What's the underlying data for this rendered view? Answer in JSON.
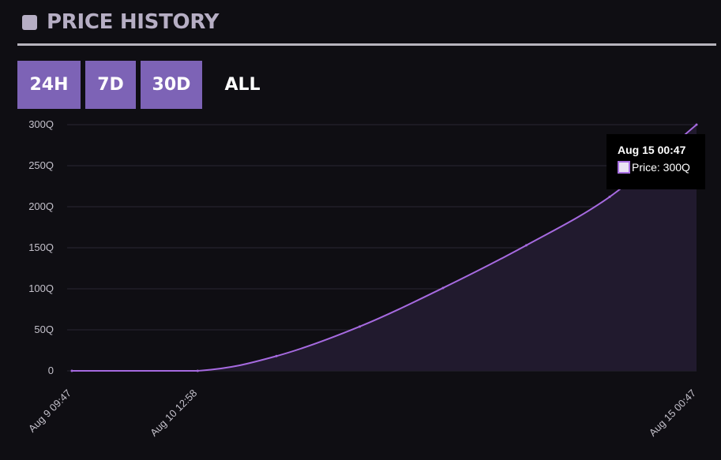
{
  "header": {
    "title": "PRICE HISTORY",
    "icon": "square-icon"
  },
  "range_tabs": [
    {
      "label": "24H",
      "active": false
    },
    {
      "label": "7D",
      "active": false
    },
    {
      "label": "30D",
      "active": false
    },
    {
      "label": "ALL",
      "active": true
    }
  ],
  "colors": {
    "background": "#0f0e13",
    "tab_background": "#7d63b6",
    "line": "#a66ae0",
    "area_fill": "#211a2e",
    "grid": "#2a2733"
  },
  "chart_data": {
    "type": "area",
    "y_ticks": [
      "0",
      "50Q",
      "100Q",
      "150Q",
      "200Q",
      "250Q",
      "300Q"
    ],
    "ylim": [
      0,
      300
    ],
    "y_unit": "Q",
    "x_ticks": [
      "Aug 9 09:47",
      "Aug 10 12:58",
      "Aug 15 00:47"
    ],
    "grid": true,
    "series": [
      {
        "name": "Price",
        "x": [
          "Aug 9 09:47",
          "Aug 10 12:58",
          "Aug 11 06:00",
          "Aug 12 00:00",
          "Aug 12 18:00",
          "Aug 13 12:00",
          "Aug 14 06:00",
          "Aug 15 00:47"
        ],
        "values": [
          0,
          0,
          18,
          54,
          101,
          153,
          212,
          300
        ]
      }
    ],
    "tooltip": {
      "date": "Aug 15 00:47",
      "text": "Price: 300Q"
    }
  }
}
